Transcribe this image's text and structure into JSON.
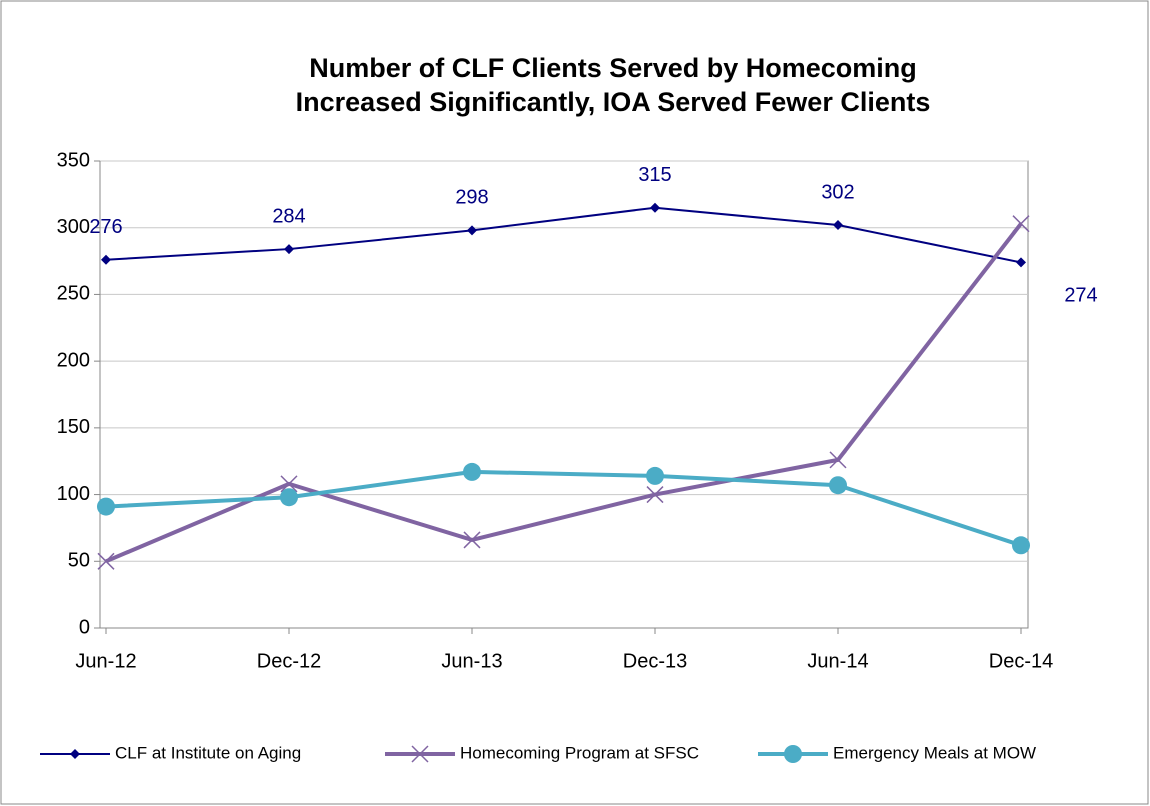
{
  "chart_data": {
    "type": "line",
    "title": [
      "Number of CLF Clients Served by Homecoming",
      "Increased Significantly,  IOA Served Fewer Clients"
    ],
    "categories": [
      "Jun-12",
      "Dec-12",
      "Jun-13",
      "Dec-13",
      "Jun-14",
      "Dec-14"
    ],
    "series": [
      {
        "name": "CLF at Institute on Aging",
        "color": "#000080",
        "marker": "diamond",
        "width": 2,
        "data_labels": true,
        "values": [
          276,
          284,
          298,
          315,
          302,
          274
        ]
      },
      {
        "name": "Homecoming Program at SFSC",
        "color": "#8064a2",
        "marker": "x",
        "width": 4,
        "data_labels": false,
        "values": [
          50,
          108,
          66,
          100,
          126,
          303
        ]
      },
      {
        "name": "Emergency Meals at MOW",
        "color": "#4bacc6",
        "marker": "circle",
        "width": 4,
        "data_labels": false,
        "values": [
          91,
          98,
          117,
          114,
          107,
          62
        ]
      }
    ],
    "ylim": [
      0,
      350
    ],
    "yticks": [
      0,
      50,
      100,
      150,
      200,
      250,
      300,
      350
    ],
    "grid": true,
    "legend": "bottom"
  }
}
